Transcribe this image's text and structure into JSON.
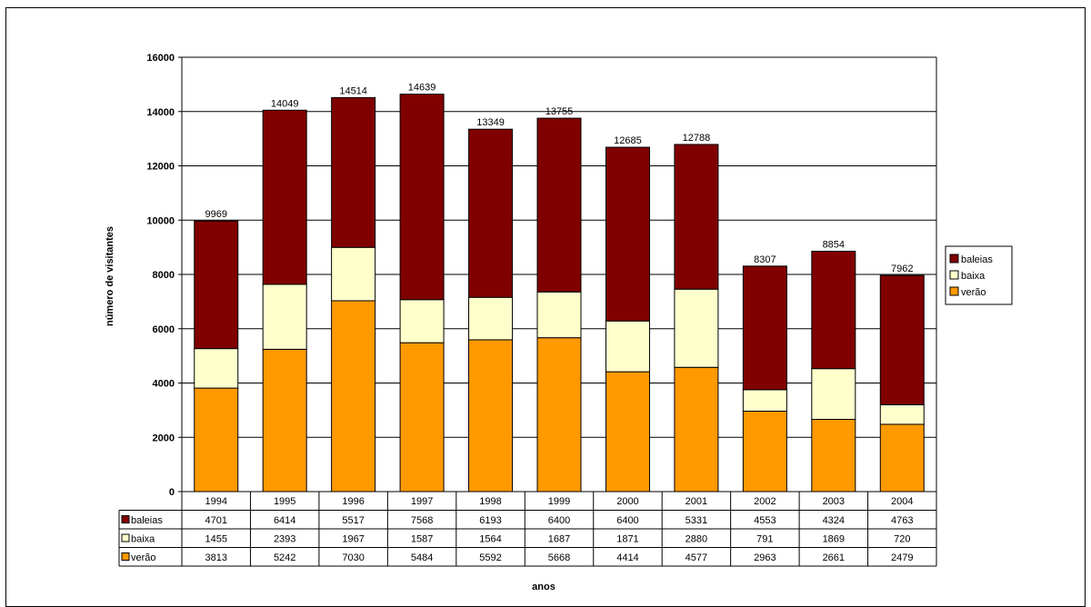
{
  "chart_data": {
    "type": "bar",
    "stacked": true,
    "categories": [
      "1994",
      "1995",
      "1996",
      "1997",
      "1998",
      "1999",
      "2000",
      "2001",
      "2002",
      "2003",
      "2004"
    ],
    "totals": [
      9969,
      14049,
      14514,
      14639,
      13349,
      13755,
      12685,
      12788,
      8307,
      8854,
      7962
    ],
    "series": [
      {
        "name": "verão",
        "color": "#ff9900",
        "values": [
          3813,
          5242,
          7030,
          5484,
          5592,
          5668,
          4414,
          4577,
          2963,
          2661,
          2479
        ]
      },
      {
        "name": "baixa",
        "color": "#ffffcc",
        "values": [
          1455,
          2393,
          1967,
          1587,
          1564,
          1687,
          1871,
          2880,
          791,
          1869,
          720
        ]
      },
      {
        "name": "baleias",
        "color": "#800000",
        "values": [
          4701,
          6414,
          5517,
          7568,
          6193,
          6400,
          6400,
          5331,
          4553,
          4324,
          4763
        ]
      }
    ],
    "table_row_order": [
      "baleias",
      "baixa",
      "verão"
    ],
    "legend_order": [
      "baleias",
      "baixa",
      "verão"
    ],
    "legend_position": "right",
    "xlabel": "anos",
    "ylabel": "número de visitantes",
    "ylim": [
      0,
      16000
    ],
    "yticks": [
      0,
      2000,
      4000,
      6000,
      8000,
      10000,
      12000,
      14000,
      16000
    ],
    "grid": true,
    "data_table": true
  }
}
